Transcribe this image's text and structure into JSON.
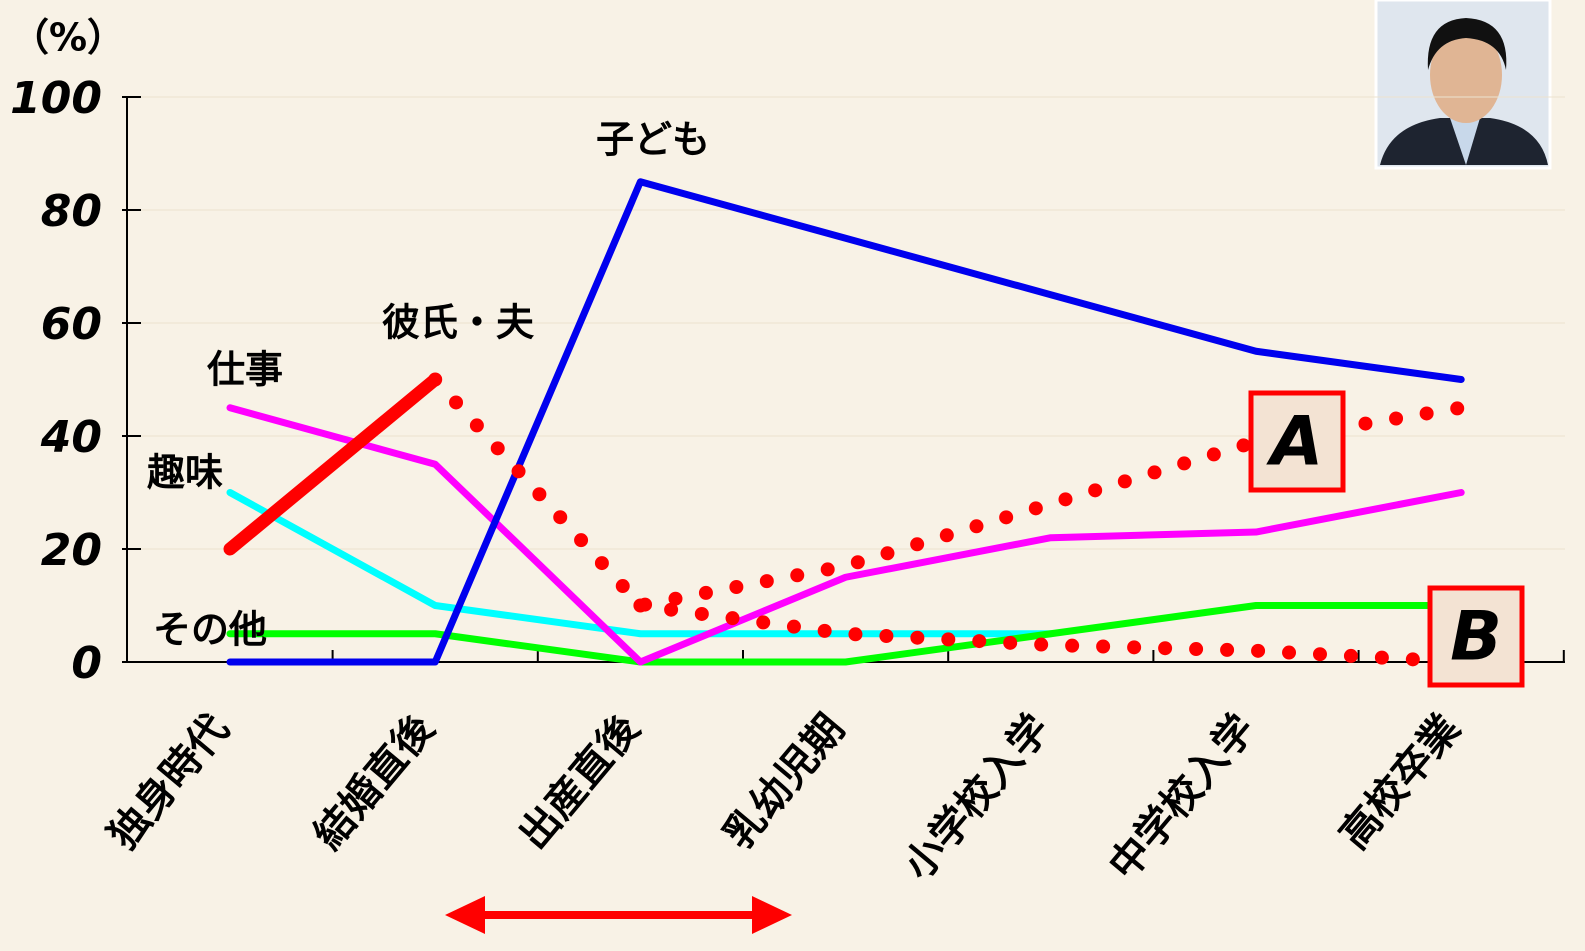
{
  "chart_data": {
    "type": "line",
    "y_label": "（%）",
    "categories": [
      "独身時代",
      "結婚直後",
      "出産直後",
      "乳幼児期",
      "小学校入学",
      "中学校入学",
      "高校卒業"
    ],
    "series": [
      {
        "name": "子ども",
        "color": "#0000ee",
        "values": [
          0,
          0,
          85,
          75,
          65,
          55,
          50
        ]
      },
      {
        "name": "仕事",
        "color": "#ff00ff",
        "values": [
          45,
          35,
          0,
          15,
          22,
          23,
          30
        ]
      },
      {
        "name": "趣味",
        "color": "#00ffff",
        "values": [
          30,
          10,
          5,
          5,
          5,
          null,
          null
        ]
      },
      {
        "name": "その他",
        "color": "#00ff00",
        "values": [
          5,
          5,
          0,
          0,
          5,
          10,
          10
        ]
      },
      {
        "name": "彼氏・夫",
        "color": "#ff0000",
        "values": [
          20,
          50,
          null,
          null,
          null,
          null,
          null
        ]
      },
      {
        "name": "A",
        "color": "#ff0000",
        "line_style": "dotted",
        "values": [
          null,
          50,
          10,
          17,
          28,
          39,
          45
        ]
      },
      {
        "name": "B",
        "color": "#ff0000",
        "line_style": "dotted",
        "values": [
          null,
          null,
          10,
          5,
          3,
          2,
          0
        ]
      }
    ],
    "ylim": [
      0,
      100
    ],
    "yticks": [
      0,
      20,
      40,
      60,
      80,
      100
    ],
    "grid": true
  }
}
